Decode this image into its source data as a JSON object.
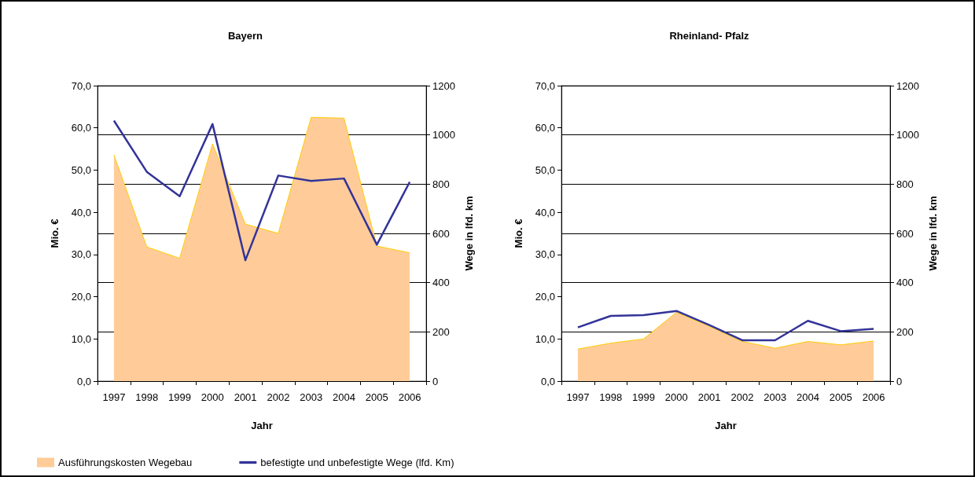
{
  "chart_data": [
    {
      "type": "area",
      "title": "Bayern",
      "xlabel": "Jahr",
      "ylabel": "Mio. €",
      "y2label": "Wege in lfd. km",
      "categories": [
        "1997",
        "1998",
        "1999",
        "2000",
        "2001",
        "2002",
        "2003",
        "2004",
        "2005",
        "2006"
      ],
      "series": [
        {
          "name": "Ausführungskosten Wegebau",
          "color": "#ffcc99",
          "values": [
            53.6,
            31.8,
            29.1,
            56.2,
            37.2,
            35.0,
            62.5,
            62.3,
            32.0,
            30.4
          ]
        },
        {
          "name": "befestigte und unbefestigte Wege (lfd. Km)",
          "type": "line",
          "axis": "y2",
          "color": "#333399",
          "values": [
            1058,
            850,
            751,
            1044,
            491,
            835,
            813,
            823,
            554,
            809
          ]
        }
      ],
      "ylim": [
        0,
        70
      ],
      "yticks": [
        {
          "value": 0,
          "label": "0,0"
        },
        {
          "value": 10,
          "label": "10,0"
        },
        {
          "value": 20,
          "label": "20,0"
        },
        {
          "value": 30,
          "label": "30,0"
        },
        {
          "value": 40,
          "label": "40,0"
        },
        {
          "value": 50,
          "label": "50,0"
        },
        {
          "value": 60,
          "label": "60,0"
        },
        {
          "value": 70,
          "label": "70,0"
        }
      ],
      "y2lim": [
        0,
        1200
      ],
      "y2ticks": [
        0,
        200,
        400,
        600,
        800,
        1000,
        1200
      ],
      "grid": true,
      "legend": "bottom",
      "marker": "none"
    },
    {
      "type": "area",
      "title": "Rheinland- Pfalz",
      "xlabel": "Jahr",
      "ylabel": "Mio. €",
      "y2label": "Wege in lfd. km",
      "categories": [
        "1997",
        "1998",
        "1999",
        "2000",
        "2001",
        "2002",
        "2003",
        "2004",
        "2005",
        "2006"
      ],
      "series": [
        {
          "color": "#ffcc99",
          "values": [
            7.6,
            9.0,
            10.0,
            16.3,
            13.0,
            9.4,
            7.8,
            9.4,
            8.6,
            9.5
          ]
        },
        {
          "type": "line",
          "axis": "y2",
          "color": "#333399",
          "values": [
            218,
            265,
            268,
            285,
            228,
            166,
            166,
            245,
            203,
            212
          ]
        }
      ],
      "ylim": [
        0,
        70
      ],
      "yticks": [
        {
          "value": 0,
          "label": "0,0"
        },
        {
          "value": 10,
          "label": "10,0"
        },
        {
          "value": 20,
          "label": "20,0"
        },
        {
          "value": 30,
          "label": "30,0"
        },
        {
          "value": 40,
          "label": "40,0"
        },
        {
          "value": 50,
          "label": "50,0"
        },
        {
          "value": 60,
          "label": "60,0"
        },
        {
          "value": 70,
          "label": "70,0"
        }
      ],
      "y2lim": [
        0,
        1200
      ],
      "y2ticks": [
        0,
        200,
        400,
        600,
        800,
        1000,
        1200
      ],
      "grid": true,
      "legend": false,
      "marker": "none"
    }
  ]
}
